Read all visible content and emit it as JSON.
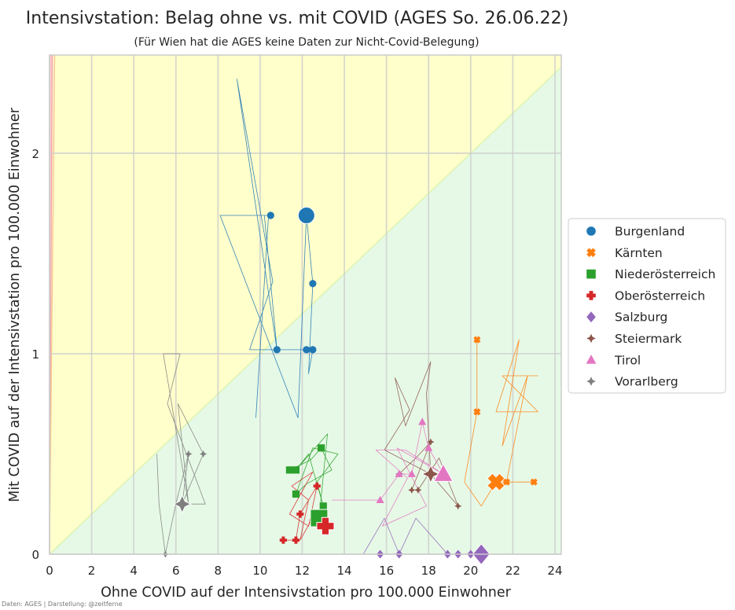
{
  "chart_data": {
    "type": "scatter",
    "title": "Intensivstation: Belag ohne vs. mit COVID (AGES So. 26.06.22)",
    "subtitle": "(Für Wien hat die AGES keine Daten zur Nicht-Covid-Belegung)",
    "xlabel": "Ohne COVID auf der Intensivstation pro 100.000 Einwohner",
    "ylabel": "Mit COVID auf der Intensivstation pro 100.000 Einwohner",
    "credit": "Daten: AGES | Darstellung: @zeitferne",
    "xlim": [
      0,
      24.3
    ],
    "ylim": [
      0,
      2.49
    ],
    "x_ticks": [
      0,
      2,
      4,
      6,
      8,
      10,
      12,
      14,
      16,
      18,
      20,
      22,
      24
    ],
    "x_tick_labels": [
      "0",
      "2",
      "4",
      "6",
      "8",
      "10",
      "12",
      "14",
      "16",
      "18",
      "20",
      "22",
      "24"
    ],
    "y_ticks": [
      0,
      1,
      2
    ],
    "y_tick_labels": [
      "0",
      "1",
      "2"
    ],
    "grid": true,
    "legend_position": "right",
    "background_zones": [
      {
        "color": "#ffcccc",
        "slope_from": 20,
        "slope_to": 1000
      },
      {
        "color": "#fde9cc",
        "slope_from": 10,
        "slope_to": 20
      },
      {
        "color": "#ffffcc",
        "slope_from": 0.1,
        "slope_to": 10
      },
      {
        "color": "#e6f9e6",
        "slope_from": 0,
        "slope_to": 0.1
      }
    ],
    "series": [
      {
        "name": "Burgenland",
        "color": "#1f77b4",
        "marker": "circle",
        "points": [
          [
            10.5,
            1.69
          ],
          [
            12.5,
            1.35
          ],
          [
            10.8,
            1.02
          ],
          [
            12.2,
            1.02
          ],
          [
            12.5,
            1.02
          ]
        ],
        "current": [
          12.2,
          1.69
        ],
        "trail": [
          [
            9.8,
            0.68
          ],
          [
            10.4,
            1.69
          ],
          [
            8.1,
            1.69
          ],
          [
            11.8,
            0.68
          ],
          [
            12.2,
            1.69
          ],
          [
            12.5,
            1.35
          ],
          [
            12.3,
            0.9
          ],
          [
            12.5,
            1.02
          ],
          [
            9.5,
            1.02
          ],
          [
            10.6,
            1.36
          ],
          [
            8.9,
            2.37
          ],
          [
            10.8,
            1.02
          ],
          [
            10.2,
            1.69
          ]
        ]
      },
      {
        "name": "Kärnten",
        "color": "#ff7f0e",
        "marker": "x",
        "points": [
          [
            20.3,
            1.07
          ],
          [
            20.3,
            0.71
          ],
          [
            21.7,
            0.36
          ],
          [
            23.0,
            0.36
          ]
        ],
        "current": [
          21.2,
          0.36
        ],
        "trail": [
          [
            20.3,
            1.07
          ],
          [
            20.3,
            0.71
          ],
          [
            19.7,
            0.36
          ],
          [
            20.5,
            0.24
          ],
          [
            21.2,
            0.36
          ],
          [
            23.0,
            0.36
          ],
          [
            21.7,
            0.36
          ],
          [
            22.7,
            0.89
          ],
          [
            21.5,
            0.54
          ],
          [
            22.3,
            1.07
          ],
          [
            21.2,
            0.71
          ],
          [
            23.2,
            0.71
          ],
          [
            21.5,
            0.89
          ],
          [
            23.2,
            0.89
          ]
        ]
      },
      {
        "name": "Niederösterreich",
        "color": "#2ca02c",
        "marker": "square",
        "points": [
          [
            11.4,
            0.42
          ],
          [
            11.7,
            0.42
          ],
          [
            12.9,
            0.53
          ],
          [
            11.7,
            0.3
          ],
          [
            13.0,
            0.24
          ]
        ],
        "current": [
          12.8,
          0.18
        ],
        "trail": [
          [
            11.4,
            0.42
          ],
          [
            12.4,
            0.47
          ],
          [
            12.9,
            0.53
          ],
          [
            13.4,
            0.42
          ],
          [
            12.2,
            0.35
          ],
          [
            11.7,
            0.3
          ],
          [
            12.5,
            0.53
          ],
          [
            13.7,
            0.5
          ],
          [
            12.7,
            0.36
          ],
          [
            13.0,
            0.24
          ],
          [
            12.3,
            0.5
          ],
          [
            11.7,
            0.42
          ],
          [
            13.2,
            0.6
          ],
          [
            12.8,
            0.18
          ]
        ]
      },
      {
        "name": "Oberösterreich",
        "color": "#d62728",
        "marker": "plus",
        "points": [
          [
            12.7,
            0.34
          ],
          [
            11.9,
            0.2
          ],
          [
            11.1,
            0.07
          ],
          [
            11.7,
            0.07
          ]
        ],
        "current": [
          13.1,
          0.14
        ],
        "trail": [
          [
            11.1,
            0.07
          ],
          [
            11.7,
            0.07
          ],
          [
            11.9,
            0.2
          ],
          [
            12.7,
            0.34
          ],
          [
            12.3,
            0.14
          ],
          [
            11.4,
            0.2
          ],
          [
            12.5,
            0.41
          ],
          [
            11.5,
            0.34
          ],
          [
            12.3,
            0.27
          ],
          [
            11.9,
            0.07
          ],
          [
            12.6,
            0.2
          ],
          [
            13.1,
            0.14
          ]
        ]
      },
      {
        "name": "Salzburg",
        "color": "#9467bd",
        "marker": "diamond",
        "points": [
          [
            15.7,
            0.0
          ],
          [
            16.6,
            0.0
          ],
          [
            18.9,
            0.0
          ],
          [
            19.4,
            0.0
          ],
          [
            20.0,
            0.0
          ]
        ],
        "current": [
          20.5,
          0.0
        ],
        "trail": [
          [
            14.9,
            0.0
          ],
          [
            15.9,
            0.18
          ],
          [
            16.6,
            0.0
          ],
          [
            17.4,
            0.18
          ],
          [
            18.9,
            0.0
          ],
          [
            19.4,
            0.0
          ],
          [
            20.0,
            0.0
          ],
          [
            20.5,
            0.0
          ]
        ]
      },
      {
        "name": "Steiermark",
        "color": "#8c564b",
        "marker": "star4",
        "points": [
          [
            16.6,
            0.4
          ],
          [
            17.2,
            0.32
          ],
          [
            17.5,
            0.32
          ],
          [
            18.1,
            0.56
          ],
          [
            19.4,
            0.24
          ]
        ],
        "current": [
          18.1,
          0.4
        ],
        "trail": [
          [
            16.6,
            0.4
          ],
          [
            17.4,
            0.48
          ],
          [
            18.1,
            0.56
          ],
          [
            17.2,
            0.32
          ],
          [
            17.5,
            0.32
          ],
          [
            18.5,
            0.48
          ],
          [
            19.4,
            0.24
          ],
          [
            18.1,
            0.4
          ],
          [
            17.9,
            0.8
          ],
          [
            18.1,
            0.96
          ],
          [
            16.9,
            0.64
          ],
          [
            16.4,
            0.88
          ],
          [
            17.1,
            0.72
          ],
          [
            15.9,
            0.52
          ],
          [
            18.1,
            0.4
          ]
        ]
      },
      {
        "name": "Tirol",
        "color": "#e377c2",
        "marker": "triangle",
        "points": [
          [
            17.7,
            0.66
          ],
          [
            18.0,
            0.53
          ],
          [
            17.2,
            0.4
          ],
          [
            15.7,
            0.27
          ],
          [
            16.6,
            0.4
          ]
        ],
        "current": [
          18.7,
          0.4
        ],
        "trail": [
          [
            13.4,
            0.27
          ],
          [
            15.7,
            0.27
          ],
          [
            16.6,
            0.4
          ],
          [
            17.2,
            0.4
          ],
          [
            17.7,
            0.66
          ],
          [
            18.0,
            0.53
          ],
          [
            18.7,
            0.4
          ],
          [
            16.9,
            0.52
          ],
          [
            15.5,
            0.52
          ],
          [
            17.0,
            0.38
          ],
          [
            15.8,
            0.14
          ],
          [
            17.9,
            0.24
          ],
          [
            16.5,
            0.53
          ],
          [
            18.7,
            0.4
          ]
        ]
      },
      {
        "name": "Vorarlberg",
        "color": "#7f7f7f",
        "marker": "star4",
        "points": [
          [
            6.6,
            0.5
          ],
          [
            7.3,
            0.5
          ],
          [
            5.5,
            0.0
          ]
        ],
        "current": [
          6.3,
          0.25
        ],
        "trail": [
          [
            5.1,
            0.5
          ],
          [
            5.2,
            0.25
          ],
          [
            5.5,
            0.0
          ],
          [
            6.0,
            0.25
          ],
          [
            6.6,
            0.5
          ],
          [
            6.3,
            0.25
          ],
          [
            7.3,
            0.5
          ],
          [
            6.1,
            0.75
          ],
          [
            6.6,
            0.25
          ],
          [
            5.4,
            1.0
          ],
          [
            6.2,
            1.0
          ],
          [
            5.6,
            0.75
          ],
          [
            7.4,
            0.25
          ],
          [
            6.3,
            0.25
          ]
        ]
      }
    ]
  }
}
